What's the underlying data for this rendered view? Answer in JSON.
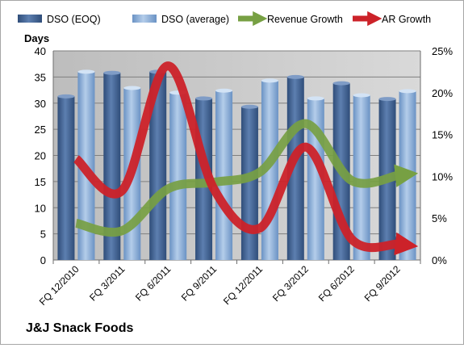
{
  "footer_title": "J&J Snack Foods",
  "chart_data": {
    "type": "bar",
    "categories": [
      "FQ 12/2010",
      "FQ 3/2011",
      "FQ 6/2011",
      "FQ 9/2011",
      "FQ 12/2011",
      "FQ 3/2012",
      "FQ 6/2012",
      "FQ 9/2012"
    ],
    "ylabel": "Days",
    "ylim": [
      0,
      40
    ],
    "yticks": [
      0,
      5,
      10,
      15,
      20,
      25,
      30,
      35,
      40
    ],
    "y2lim": [
      0,
      0.25
    ],
    "y2ticks": [
      "0%",
      "5%",
      "10%",
      "15%",
      "20%",
      "25%"
    ],
    "grid": true,
    "legend_position": "top",
    "series": [
      {
        "name": "DSO (EOQ)",
        "type": "bar",
        "axis": "left",
        "color": "#4a6b9c",
        "values": [
          31.3,
          35.8,
          36.0,
          30.9,
          29.3,
          35.0,
          33.8,
          30.8
        ]
      },
      {
        "name": "DSO (average)",
        "type": "bar",
        "axis": "left",
        "color": "#8fb2da",
        "values": [
          36.0,
          32.9,
          32.0,
          32.4,
          34.3,
          30.9,
          31.5,
          32.3
        ]
      },
      {
        "name": "Revenue Growth",
        "type": "line",
        "axis": "right",
        "color": "#77a043",
        "values": [
          0.044,
          0.035,
          0.085,
          0.093,
          0.105,
          0.163,
          0.095,
          0.101
        ]
      },
      {
        "name": "AR Growth",
        "type": "line",
        "axis": "right",
        "color": "#cc2229",
        "values": [
          0.121,
          0.083,
          0.232,
          0.085,
          0.038,
          0.135,
          0.025,
          0.019
        ]
      }
    ]
  }
}
